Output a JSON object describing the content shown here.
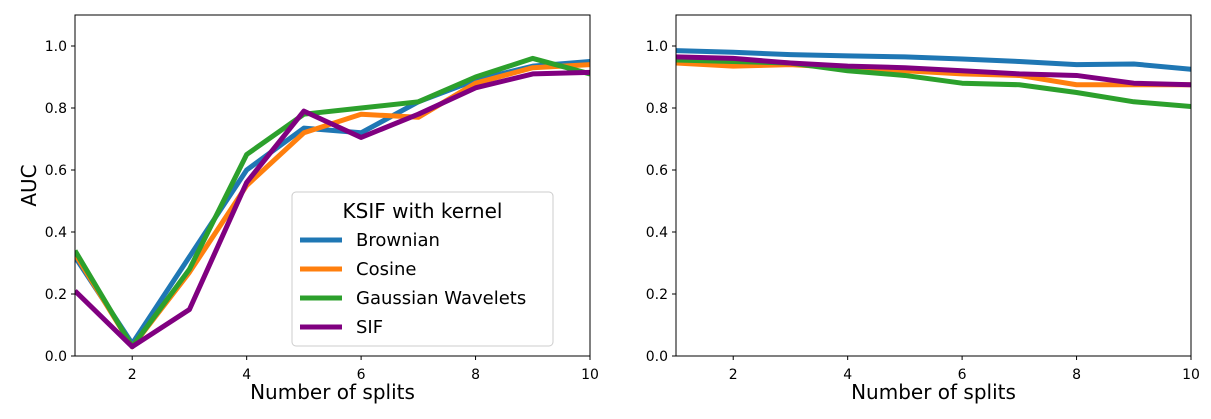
{
  "chart_data": [
    {
      "type": "line",
      "xlabel": "Number of splits",
      "ylabel": "AUC",
      "xlim": [
        1,
        10
      ],
      "ylim": [
        0,
        1.1
      ],
      "xticks": [
        "2",
        "4",
        "6",
        "8",
        "10"
      ],
      "yticks": [
        "0.0",
        "0.2",
        "0.4",
        "0.6",
        "0.8",
        "1.0"
      ],
      "grid": false,
      "legend": {
        "title": "KSIF with kernel",
        "placement": "lower-right"
      },
      "series": [
        {
          "name": "Brownian",
          "color": "#1f77b4",
          "x": [
            1,
            2,
            3,
            4,
            5,
            6,
            7,
            8,
            9,
            10
          ],
          "y": [
            0.32,
            0.04,
            0.32,
            0.6,
            0.735,
            0.72,
            0.82,
            0.89,
            0.935,
            0.95
          ]
        },
        {
          "name": "Cosine",
          "color": "#ff7f0e",
          "x": [
            1,
            2,
            3,
            4,
            5,
            6,
            7,
            8,
            9,
            10
          ],
          "y": [
            0.33,
            0.03,
            0.27,
            0.55,
            0.72,
            0.78,
            0.77,
            0.88,
            0.93,
            0.94
          ]
        },
        {
          "name": "Gaussian Wavelets",
          "color": "#2ca02c",
          "x": [
            1,
            2,
            3,
            4,
            5,
            6,
            7,
            8,
            9,
            10
          ],
          "y": [
            0.34,
            0.03,
            0.28,
            0.65,
            0.78,
            0.8,
            0.82,
            0.9,
            0.96,
            0.91
          ]
        },
        {
          "name": "SIF",
          "color": "#800080",
          "x": [
            1,
            2,
            3,
            4,
            5,
            6,
            7,
            8,
            9,
            10
          ],
          "y": [
            0.21,
            0.03,
            0.15,
            0.56,
            0.79,
            0.705,
            0.78,
            0.865,
            0.91,
            0.915
          ]
        }
      ]
    },
    {
      "type": "line",
      "xlabel": "Number of splits",
      "ylabel": "",
      "xlim": [
        1,
        10
      ],
      "ylim": [
        0,
        1.1
      ],
      "xticks": [
        "2",
        "4",
        "6",
        "8",
        "10"
      ],
      "yticks": [
        "0.0",
        "0.2",
        "0.4",
        "0.6",
        "0.8",
        "1.0"
      ],
      "grid": false,
      "series": [
        {
          "name": "Brownian",
          "color": "#1f77b4",
          "x": [
            1,
            2,
            3,
            4,
            5,
            6,
            7,
            8,
            9,
            10
          ],
          "y": [
            0.985,
            0.98,
            0.972,
            0.968,
            0.965,
            0.958,
            0.95,
            0.94,
            0.942,
            0.925
          ]
        },
        {
          "name": "Cosine",
          "color": "#ff7f0e",
          "x": [
            1,
            2,
            3,
            4,
            5,
            6,
            7,
            8,
            9,
            10
          ],
          "y": [
            0.945,
            0.935,
            0.94,
            0.93,
            0.92,
            0.91,
            0.905,
            0.875,
            0.875,
            0.875
          ]
        },
        {
          "name": "Gaussian Wavelets",
          "color": "#2ca02c",
          "x": [
            1,
            2,
            3,
            4,
            5,
            6,
            7,
            8,
            9,
            10
          ],
          "y": [
            0.955,
            0.95,
            0.945,
            0.92,
            0.905,
            0.88,
            0.875,
            0.85,
            0.82,
            0.805
          ]
        },
        {
          "name": "SIF",
          "color": "#800080",
          "x": [
            1,
            2,
            3,
            4,
            5,
            6,
            7,
            8,
            9,
            10
          ],
          "y": [
            0.965,
            0.96,
            0.945,
            0.935,
            0.93,
            0.92,
            0.91,
            0.905,
            0.88,
            0.875
          ]
        }
      ]
    }
  ]
}
